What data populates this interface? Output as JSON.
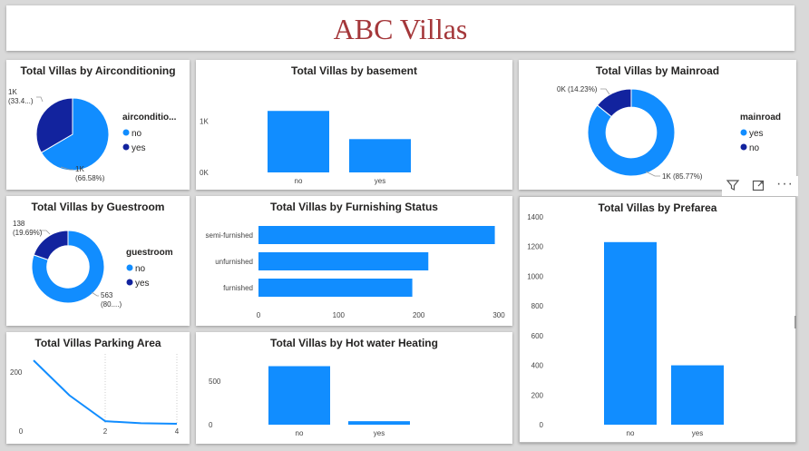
{
  "title": "ABC Villas",
  "colors": {
    "light": "#118dff",
    "dark": "#12239e",
    "title": "#a4373a"
  },
  "toolbar": {
    "icons": [
      "filter-icon",
      "focus-mode-icon",
      "more-options-icon"
    ]
  },
  "chart_data": [
    {
      "id": "aircon",
      "type": "pie",
      "title": "Total Villas by Airconditioning",
      "legend_title": "airconditio...",
      "slices": [
        {
          "name": "no",
          "value": 66.58,
          "label": [
            "1K",
            "(66.58%)"
          ],
          "color": "#118dff"
        },
        {
          "name": "yes",
          "value": 33.42,
          "label": [
            "1K",
            "(33.4...)"
          ],
          "color": "#12239e"
        }
      ]
    },
    {
      "id": "basement",
      "type": "bar",
      "title": "Total Villas by basement",
      "categories": [
        "no",
        "yes"
      ],
      "values": [
        1200,
        650
      ],
      "ylim": [
        0,
        1700
      ],
      "yticks": [
        0,
        1000
      ],
      "ytick_labels": [
        "0K",
        "1K"
      ]
    },
    {
      "id": "mainroad",
      "type": "pie",
      "donut": true,
      "title": "Total Villas by Mainroad",
      "legend_title": "mainroad",
      "slices": [
        {
          "name": "yes",
          "value": 85.77,
          "label": [
            "1K (85.77%)"
          ],
          "color": "#118dff"
        },
        {
          "name": "no",
          "value": 14.23,
          "label": [
            "0K (14.23%)"
          ],
          "color": "#12239e"
        }
      ]
    },
    {
      "id": "guestroom",
      "type": "pie",
      "donut": true,
      "title": "Total Villas by Guestroom",
      "legend_title": "guestroom",
      "slices": [
        {
          "name": "no",
          "value": 563,
          "label": [
            "563",
            "(80....)"
          ],
          "color": "#118dff"
        },
        {
          "name": "yes",
          "value": 138,
          "label": [
            "138",
            "(19.69%)"
          ],
          "color": "#12239e"
        }
      ]
    },
    {
      "id": "furnishing",
      "type": "bar",
      "orientation": "horizontal",
      "title": "Total Villas by Furnishing Status",
      "categories": [
        "semi-furnished",
        "unfurnished",
        "furnished"
      ],
      "values": [
        295,
        212,
        192
      ],
      "xlim": [
        0,
        300
      ],
      "xticks": [
        0,
        100,
        200,
        300
      ]
    },
    {
      "id": "prefarea",
      "type": "bar",
      "title": "Total Villas by Prefarea",
      "categories": [
        "no",
        "yes"
      ],
      "values": [
        1230,
        400
      ],
      "ylim": [
        0,
        1400
      ],
      "yticks": [
        0,
        200,
        400,
        600,
        800,
        1000,
        1200,
        1400
      ]
    },
    {
      "id": "parking",
      "type": "line",
      "title": "Total Villas Parking Area",
      "x": [
        0,
        1,
        2,
        3,
        4
      ],
      "y": [
        245,
        110,
        10,
        2,
        0
      ],
      "xlim": [
        0,
        4
      ],
      "ylim": [
        0,
        270
      ],
      "xticks": [
        0,
        2,
        4
      ],
      "yticks": [
        200
      ]
    },
    {
      "id": "hotwater",
      "type": "bar",
      "title": "Total Villas by Hot water Heating",
      "categories": [
        "no",
        "yes"
      ],
      "values": [
        670,
        40
      ],
      "ylim": [
        0,
        800
      ],
      "yticks": [
        0,
        500
      ]
    }
  ]
}
